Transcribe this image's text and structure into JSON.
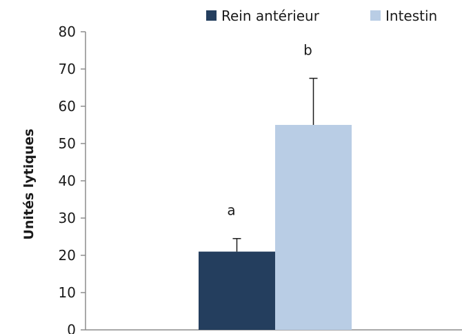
{
  "chart_data": {
    "type": "bar",
    "ylabel": "Unités lytiques",
    "ylim": [
      0,
      80
    ],
    "yticks": [
      0,
      10,
      20,
      30,
      40,
      50,
      60,
      70,
      80
    ],
    "grid": false,
    "legend_position": "top-right",
    "series": [
      {
        "name": "Rein antérieur",
        "value": 21,
        "error": 3.5,
        "annotation": "a",
        "color": "#243e5e"
      },
      {
        "name": "Intestin",
        "value": 55,
        "error": 12.5,
        "annotation": "b",
        "color": "#b9cde5"
      }
    ]
  }
}
